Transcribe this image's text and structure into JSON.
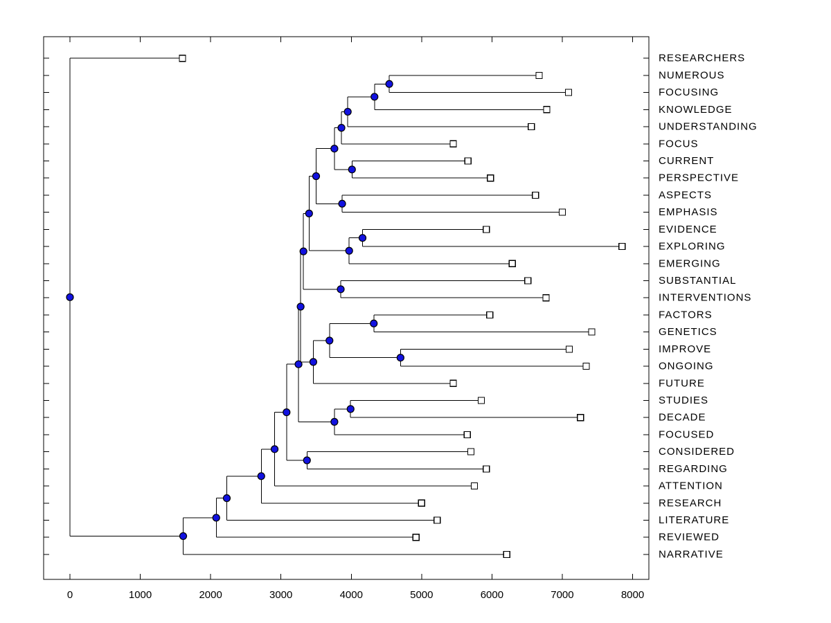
{
  "figure": {
    "background_color": "#ffffff",
    "plot_border_color": "#000000"
  },
  "chart_data": {
    "type": "dendrogram",
    "orientation": "left-to-right",
    "title": "",
    "xlabel": "",
    "ylabel": "",
    "x_axis": {
      "tick_labels": [
        "0",
        "1000",
        "2000",
        "3000",
        "4000",
        "5000",
        "6000",
        "7000",
        "8000"
      ],
      "tick_values": [
        0,
        1000,
        2000,
        3000,
        4000,
        5000,
        6000,
        7000,
        8000
      ],
      "approx_range": [
        -400,
        8230
      ],
      "grid": false
    },
    "y_axis": {
      "tick_count": 30,
      "ticks_mirrored_right": true
    },
    "leaves": [
      {
        "label": "RESEARCHERS",
        "distance": 1600
      },
      {
        "label": "NUMEROUS",
        "distance": 6670
      },
      {
        "label": "FOCUSING",
        "distance": 7090
      },
      {
        "label": "KNOWLEDGE",
        "distance": 6780
      },
      {
        "label": "UNDERSTANDING",
        "distance": 6560
      },
      {
        "label": "FOCUS",
        "distance": 5450
      },
      {
        "label": "CURRENT",
        "distance": 5660
      },
      {
        "label": "PERSPECTIVE",
        "distance": 5980
      },
      {
        "label": "ASPECTS",
        "distance": 6620
      },
      {
        "label": "EMPHASIS",
        "distance": 7000
      },
      {
        "label": "EVIDENCE",
        "distance": 5920
      },
      {
        "label": "EXPLORING",
        "distance": 7850
      },
      {
        "label": "EMERGING",
        "distance": 6290
      },
      {
        "label": "SUBSTANTIAL",
        "distance": 6510
      },
      {
        "label": "INTERVENTIONS",
        "distance": 6770
      },
      {
        "label": "FACTORS",
        "distance": 5970
      },
      {
        "label": "GENETICS",
        "distance": 7420
      },
      {
        "label": "IMPROVE",
        "distance": 7100
      },
      {
        "label": "ONGOING",
        "distance": 7340
      },
      {
        "label": "FUTURE",
        "distance": 5450
      },
      {
        "label": "STUDIES",
        "distance": 5850
      },
      {
        "label": "DECADE",
        "distance": 7260
      },
      {
        "label": "FOCUSED",
        "distance": 5650
      },
      {
        "label": "CONSIDERED",
        "distance": 5700
      },
      {
        "label": "REGARDING",
        "distance": 5920
      },
      {
        "label": "ATTENTION",
        "distance": 5750
      },
      {
        "label": "RESEARCH",
        "distance": 5000
      },
      {
        "label": "LITERATURE",
        "distance": 5220
      },
      {
        "label": "REVIEWED",
        "distance": 4920
      },
      {
        "label": "NARRATIVE",
        "distance": 6210
      }
    ],
    "internal_nodes": [
      {
        "id": "n2",
        "children": [
          "NUMEROUS",
          "FOCUSING"
        ],
        "distance": 4540
      },
      {
        "id": "n3",
        "children": [
          "n2",
          "KNOWLEDGE"
        ],
        "distance": 4330
      },
      {
        "id": "n4",
        "children": [
          "n3",
          "UNDERSTANDING"
        ],
        "distance": 3950
      },
      {
        "id": "n5",
        "children": [
          "n4",
          "FOCUS"
        ],
        "distance": 3860
      },
      {
        "id": "n7",
        "children": [
          "CURRENT",
          "PERSPECTIVE"
        ],
        "distance": 4010
      },
      {
        "id": "n6",
        "children": [
          "n5",
          "n7"
        ],
        "distance": 3760
      },
      {
        "id": "n9",
        "children": [
          "ASPECTS",
          "EMPHASIS"
        ],
        "distance": 3870
      },
      {
        "id": "n8",
        "children": [
          "n6",
          "n9"
        ],
        "distance": 3500
      },
      {
        "id": "n11",
        "children": [
          "EVIDENCE",
          "EXPLORING"
        ],
        "distance": 4160
      },
      {
        "id": "n12",
        "children": [
          "n11",
          "EMERGING"
        ],
        "distance": 3970
      },
      {
        "id": "n10",
        "children": [
          "n8",
          "n12"
        ],
        "distance": 3400
      },
      {
        "id": "n14",
        "children": [
          "SUBSTANTIAL",
          "INTERVENTIONS"
        ],
        "distance": 3850
      },
      {
        "id": "n13",
        "children": [
          "n10",
          "n14"
        ],
        "distance": 3320
      },
      {
        "id": "n18",
        "children": [
          "FACTORS",
          "GENETICS"
        ],
        "distance": 4320
      },
      {
        "id": "n17",
        "children": [
          "IMPROVE",
          "ONGOING"
        ],
        "distance": 4700
      },
      {
        "id": "n19",
        "children": [
          "n18",
          "n17"
        ],
        "distance": 3690
      },
      {
        "id": "n16",
        "children": [
          "n19",
          "FUTURE"
        ],
        "distance": 3460
      },
      {
        "id": "n15",
        "children": [
          "n13",
          "n16"
        ],
        "distance": 3280
      },
      {
        "id": "n22",
        "children": [
          "STUDIES",
          "DECADE"
        ],
        "distance": 3990
      },
      {
        "id": "n23",
        "children": [
          "n22",
          "FOCUSED"
        ],
        "distance": 3760
      },
      {
        "id": "n20",
        "children": [
          "n15",
          "n23"
        ],
        "distance": 3250
      },
      {
        "id": "n24",
        "children": [
          "CONSIDERED",
          "REGARDING"
        ],
        "distance": 3370
      },
      {
        "id": "n21",
        "children": [
          "n20",
          "n24"
        ],
        "distance": 3080
      },
      {
        "id": "n25",
        "children": [
          "n21",
          "ATTENTION"
        ],
        "distance": 2910
      },
      {
        "id": "n26",
        "children": [
          "n25",
          "RESEARCH"
        ],
        "distance": 2720
      },
      {
        "id": "n27",
        "children": [
          "n26",
          "LITERATURE"
        ],
        "distance": 2230
      },
      {
        "id": "n28",
        "children": [
          "n27",
          "REVIEWED"
        ],
        "distance": 2080
      },
      {
        "id": "n29",
        "children": [
          "n28",
          "NARRATIVE"
        ],
        "distance": 1610
      },
      {
        "id": "root",
        "children": [
          "RESEARCHERS",
          "n29"
        ],
        "distance": 0
      }
    ],
    "style": {
      "line_color": "#000000",
      "branch_node_marker": "filled-circle",
      "branch_node_color": "#1212e0",
      "leaf_marker": "open-square",
      "leaf_marker_fill": "#ffffff"
    }
  }
}
